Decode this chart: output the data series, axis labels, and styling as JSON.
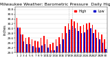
{
  "title": "Milwaukee Weather: Barometric Pressure  Daily High/Low",
  "title_fontsize": 4.5,
  "ylabel": "inches",
  "ylabel_fontsize": 3.5,
  "bar_width": 0.35,
  "high_color": "#ff0000",
  "low_color": "#0000cc",
  "background_color": "#ffffff",
  "ylim": [
    29.0,
    30.9
  ],
  "yticks": [
    29.0,
    29.2,
    29.4,
    29.6,
    29.8,
    30.0,
    30.2,
    30.4,
    30.6,
    30.8
  ],
  "categories": [
    "1",
    "2",
    "3",
    "4",
    "5",
    "6",
    "7",
    "8",
    "9",
    "10",
    "11",
    "12",
    "13",
    "14",
    "15",
    "16",
    "17",
    "18",
    "19",
    "20",
    "21",
    "22",
    "23",
    "24",
    "25",
    "26",
    "27",
    "28",
    "29",
    "30"
  ],
  "highs": [
    30.45,
    30.05,
    29.75,
    29.6,
    29.65,
    29.55,
    29.5,
    29.45,
    29.6,
    29.7,
    29.55,
    29.35,
    29.4,
    29.55,
    29.65,
    29.8,
    30.1,
    30.2,
    30.4,
    30.3,
    30.25,
    30.1,
    30.15,
    30.2,
    30.25,
    30.15,
    29.95,
    29.85,
    29.75,
    29.55
  ],
  "lows": [
    30.05,
    29.75,
    29.45,
    29.35,
    29.35,
    29.25,
    29.2,
    29.2,
    29.3,
    29.35,
    29.2,
    29.1,
    29.1,
    29.25,
    29.35,
    29.55,
    29.8,
    29.95,
    30.1,
    30.0,
    29.9,
    29.8,
    29.85,
    29.95,
    30.0,
    29.8,
    29.6,
    29.55,
    29.4,
    29.15
  ],
  "vline_positions": [
    17,
    18
  ],
  "grid_color": "#aaaaaa",
  "tick_fontsize": 3.0,
  "legend_fontsize": 3.5
}
